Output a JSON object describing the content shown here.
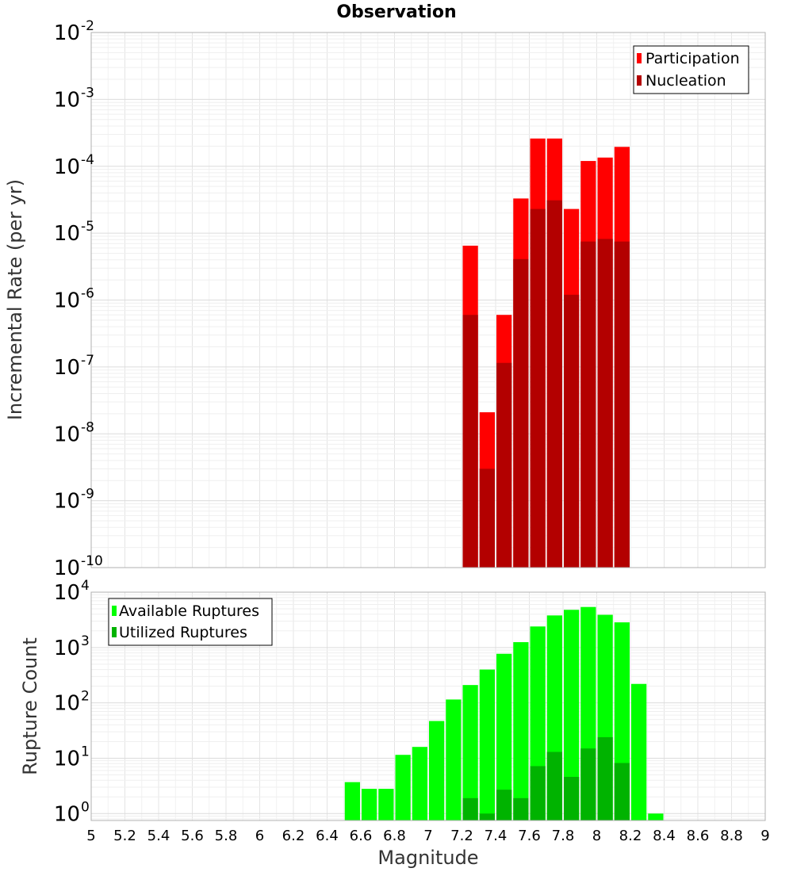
{
  "chart_data": [
    {
      "type": "bar",
      "title": "Observation",
      "xlabel": "",
      "ylabel": "Incremental Rate (per yr)",
      "yscale": "log",
      "ylim": [
        1e-10,
        0.01
      ],
      "xlim": [
        5,
        9
      ],
      "bar_width": 0.1,
      "grid": true,
      "legend_position": "top-right",
      "ytick_base": "10",
      "yticks": [
        {
          "exp": "-10",
          "value": 1e-10
        },
        {
          "exp": "-9",
          "value": 1e-09
        },
        {
          "exp": "-8",
          "value": 1e-08
        },
        {
          "exp": "-7",
          "value": 1e-07
        },
        {
          "exp": "-6",
          "value": 1e-06
        },
        {
          "exp": "-5",
          "value": 1e-05
        },
        {
          "exp": "-4",
          "value": 0.0001
        },
        {
          "exp": "-3",
          "value": 0.001
        },
        {
          "exp": "-2",
          "value": 0.01
        }
      ],
      "series": [
        {
          "name": "Participation",
          "color": "#ff0000",
          "x": [
            7.25,
            7.35,
            7.45,
            7.55,
            7.65,
            7.75,
            7.85,
            7.95,
            8.05,
            8.15
          ],
          "values": [
            6.5e-06,
            2.1e-08,
            6e-07,
            3.3e-05,
            0.00026,
            0.00026,
            2.3e-05,
            0.00012,
            0.000135,
            0.000195
          ]
        },
        {
          "name": "Nucleation",
          "color": "#b30000",
          "x": [
            7.25,
            7.35,
            7.45,
            7.55,
            7.65,
            7.75,
            7.85,
            7.95,
            8.05,
            8.15
          ],
          "values": [
            6e-07,
            3e-09,
            1.15e-07,
            4.1e-06,
            2.3e-05,
            3.1e-05,
            1.2e-06,
            7.5e-06,
            8.2e-06,
            7.5e-06
          ]
        }
      ]
    },
    {
      "type": "bar",
      "title": "",
      "xlabel": "Magnitude",
      "ylabel": "Rupture Count",
      "yscale": "log",
      "ylim": [
        0.75,
        10000
      ],
      "xlim": [
        5,
        9
      ],
      "bar_width": 0.1,
      "grid": true,
      "legend_position": "top-left",
      "ytick_base": "10",
      "yticks": [
        {
          "exp": "0",
          "value": 1
        },
        {
          "exp": "1",
          "value": 10
        },
        {
          "exp": "2",
          "value": 100
        },
        {
          "exp": "3",
          "value": 1000
        },
        {
          "exp": "4",
          "value": 10000
        }
      ],
      "xticks": [
        "5",
        "5.2",
        "5.4",
        "5.6",
        "5.8",
        "6",
        "6.2",
        "6.4",
        "6.6",
        "6.8",
        "7",
        "7.2",
        "7.4",
        "7.6",
        "7.8",
        "8",
        "8.2",
        "8.4",
        "8.6",
        "8.8",
        "9"
      ],
      "series": [
        {
          "name": "Available Ruptures",
          "color": "#00ff00",
          "x": [
            6.55,
            6.65,
            6.75,
            6.85,
            6.95,
            7.05,
            7.15,
            7.25,
            7.35,
            7.45,
            7.55,
            7.65,
            7.75,
            7.85,
            7.95,
            8.05,
            8.15,
            8.25,
            8.35
          ],
          "values": [
            3.7,
            2.8,
            2.8,
            11.5,
            16,
            47,
            115,
            210,
            400,
            770,
            1250,
            2400,
            3800,
            4800,
            5400,
            3900,
            2850,
            220,
            1.0
          ]
        },
        {
          "name": "Utilized Ruptures",
          "color": "#00b300",
          "x": [
            7.25,
            7.35,
            7.45,
            7.55,
            7.65,
            7.75,
            7.85,
            7.95,
            8.05,
            8.15
          ],
          "values": [
            1.9,
            1.0,
            2.7,
            1.9,
            7.2,
            13,
            4.6,
            15,
            24,
            8.2
          ]
        }
      ]
    }
  ]
}
